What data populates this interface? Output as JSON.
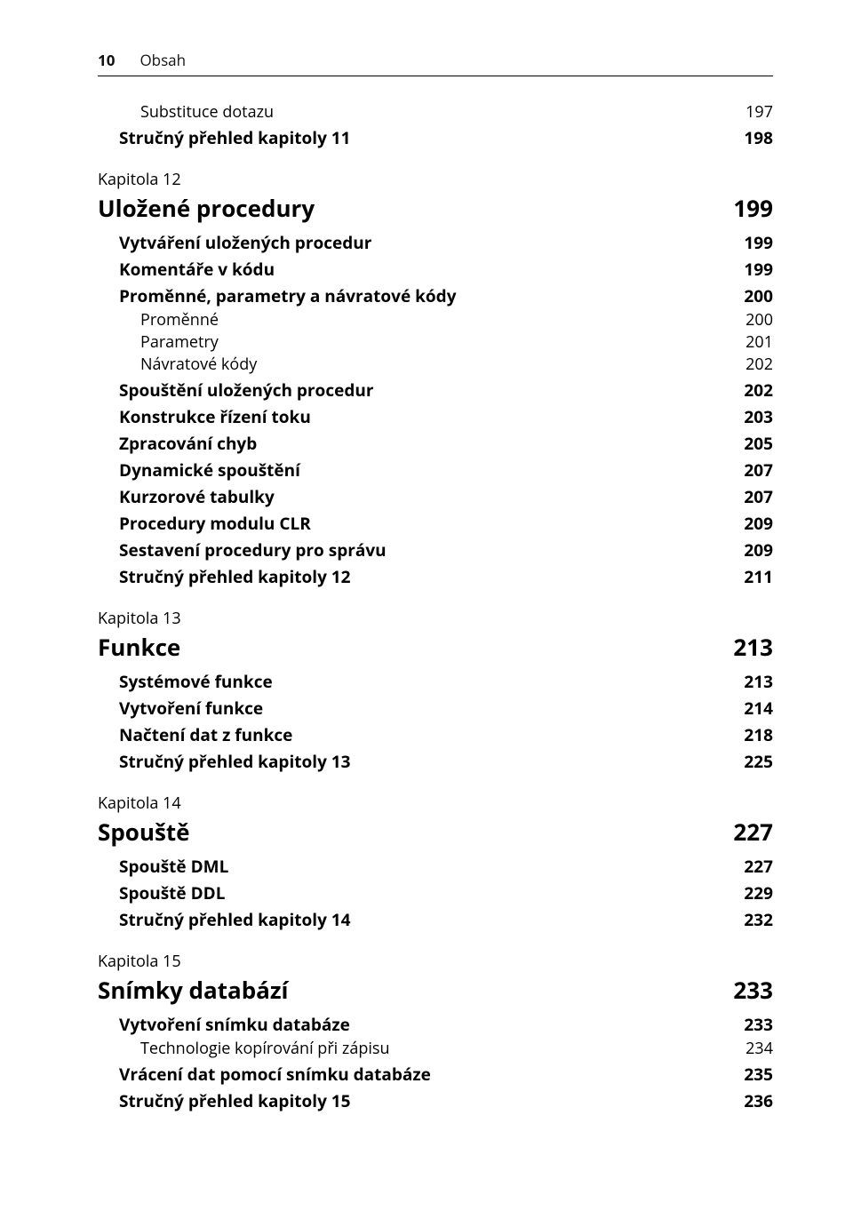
{
  "page": {
    "number": "10",
    "title": "Obsah"
  },
  "toc": [
    {
      "level": "h3",
      "label": "Substituce dotazu",
      "page": "197",
      "first": true
    },
    {
      "level": "h2",
      "label": "Stručný přehled kapitoly 11",
      "page": "198"
    },
    {
      "level": "kapitola",
      "label": "Kapitola 12",
      "page": ""
    },
    {
      "level": "h1",
      "label": "Uložené procedury",
      "page": "199"
    },
    {
      "level": "h2",
      "label": "Vytváření uložených procedur",
      "page": "199"
    },
    {
      "level": "h2",
      "label": "Komentáře v kódu",
      "page": "199"
    },
    {
      "level": "h2",
      "label": "Proměnné, parametry a návratové kódy",
      "page": "200"
    },
    {
      "level": "h3",
      "label": "Proměnné",
      "page": "200"
    },
    {
      "level": "h3",
      "label": "Parametry",
      "page": "201"
    },
    {
      "level": "h3",
      "label": "Návratové kódy",
      "page": "202"
    },
    {
      "level": "h2",
      "label": "Spouštění uložených procedur",
      "page": "202"
    },
    {
      "level": "h2",
      "label": "Konstrukce řízení toku",
      "page": "203"
    },
    {
      "level": "h2",
      "label": "Zpracování chyb",
      "page": "205"
    },
    {
      "level": "h2",
      "label": "Dynamické spouštění",
      "page": "207"
    },
    {
      "level": "h2",
      "label": "Kurzorové tabulky",
      "page": "207"
    },
    {
      "level": "h2",
      "label": "Procedury modulu CLR",
      "page": "209"
    },
    {
      "level": "h2",
      "label": "Sestavení procedury pro správu",
      "page": "209"
    },
    {
      "level": "h2",
      "label": "Stručný přehled kapitoly 12",
      "page": "211"
    },
    {
      "level": "kapitola",
      "label": "Kapitola 13",
      "page": ""
    },
    {
      "level": "h1",
      "label": "Funkce",
      "page": "213"
    },
    {
      "level": "h2",
      "label": "Systémové funkce",
      "page": "213"
    },
    {
      "level": "h2",
      "label": "Vytvoření funkce",
      "page": "214"
    },
    {
      "level": "h2",
      "label": "Načtení dat z funkce",
      "page": "218"
    },
    {
      "level": "h2",
      "label": "Stručný přehled kapitoly 13",
      "page": "225"
    },
    {
      "level": "kapitola",
      "label": "Kapitola 14",
      "page": ""
    },
    {
      "level": "h1",
      "label": "Spouště",
      "page": "227"
    },
    {
      "level": "h2",
      "label": "Spouště DML",
      "page": "227"
    },
    {
      "level": "h2",
      "label": "Spouště DDL",
      "page": "229"
    },
    {
      "level": "h2",
      "label": "Stručný přehled kapitoly 14",
      "page": "232"
    },
    {
      "level": "kapitola",
      "label": "Kapitola 15",
      "page": ""
    },
    {
      "level": "h1",
      "label": "Snímky databází",
      "page": "233"
    },
    {
      "level": "h2",
      "label": "Vytvoření snímku databáze",
      "page": "233"
    },
    {
      "level": "h3",
      "label": "Technologie kopírování při zápisu",
      "page": "234"
    },
    {
      "level": "h2",
      "label": "Vrácení dat pomocí snímku databáze",
      "page": "235"
    },
    {
      "level": "h2",
      "label": "Stručný přehled kapitoly 15",
      "page": "236"
    }
  ]
}
